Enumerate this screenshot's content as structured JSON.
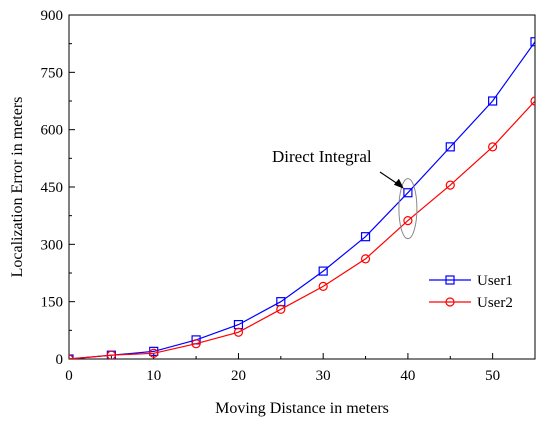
{
  "chart_data": {
    "type": "line",
    "title": "",
    "xlabel": "Moving Distance in meters",
    "ylabel": "Localization Error in meters",
    "xlim": [
      0,
      55
    ],
    "ylim": [
      0,
      900
    ],
    "xticks": [
      0,
      10,
      20,
      30,
      40,
      50
    ],
    "yticks": [
      0,
      150,
      300,
      450,
      600,
      750,
      900
    ],
    "grid": false,
    "legend_position": "right",
    "x": [
      0,
      5,
      10,
      15,
      20,
      25,
      30,
      35,
      40,
      45,
      50,
      55
    ],
    "series": [
      {
        "name": "User1",
        "color": "#0000ff",
        "marker": "square",
        "values": [
          0,
          10,
          20,
          50,
          90,
          150,
          230,
          320,
          435,
          555,
          675,
          830
        ]
      },
      {
        "name": "User2",
        "color": "#ff0000",
        "marker": "circle",
        "values": [
          0,
          10,
          15,
          40,
          70,
          130,
          190,
          262,
          362,
          455,
          555,
          675
        ]
      }
    ],
    "annotations": [
      {
        "text": "Direct Integral",
        "points_to_x": 40,
        "points_to_y": 400
      }
    ]
  }
}
